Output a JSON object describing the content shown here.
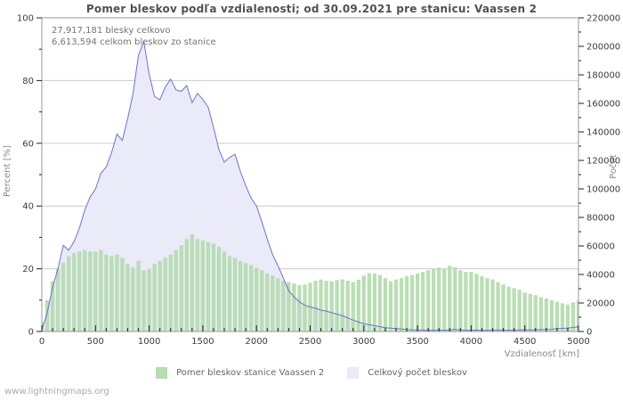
{
  "page": {
    "footer": "www.lightningmaps.org"
  },
  "chart_data": {
    "type": "area",
    "title": "Pomer bleskov podľa vzdialenosti; od 30.09.2021 pre stanicu: Vaassen 2",
    "annotations": [
      "27,917,181 blesky celkovo",
      "6,613,594 celkom bleskov zo stanice"
    ],
    "x_label": "Vzdialenosť  [km]",
    "y_left_label": "Percent  [%]",
    "y_right_label": "Počet",
    "xlim": [
      0,
      5000
    ],
    "ylim": [
      0,
      100
    ],
    "y2lim": [
      0,
      220000
    ],
    "x_ticks": [
      0,
      500,
      1000,
      1500,
      2000,
      2500,
      3000,
      3500,
      4000,
      4500,
      5000
    ],
    "x_minor_step": 100,
    "y_ticks": [
      0,
      20,
      40,
      60,
      80,
      100
    ],
    "y_minor_step": 10,
    "y2_ticks": [
      0,
      20000,
      40000,
      60000,
      80000,
      100000,
      120000,
      140000,
      160000,
      180000,
      200000,
      220000
    ],
    "y2_minor_step": 10000,
    "grid": "horizontal-major",
    "legend_position": "bottom-center",
    "legend": [
      {
        "label": "Pomer bleskov stanice Vaassen 2",
        "color": "#b6dcb0"
      },
      {
        "label": "Celkový počet bleskov",
        "color": "#eaeaf8"
      }
    ],
    "x_start": 0,
    "x_step": 50,
    "series": [
      {
        "name": "Pomer bleskov stanice Vaassen 2",
        "type": "bar",
        "axis": "left",
        "unit": "%",
        "color": "#b6dcb0",
        "values": [
          3,
          10,
          16,
          20,
          22,
          24,
          25,
          25.5,
          26,
          25.5,
          25.5,
          26,
          24.5,
          24,
          24.5,
          23.5,
          21.5,
          20.5,
          22.5,
          19.5,
          20,
          21.5,
          22.5,
          23.5,
          24.5,
          26,
          27.5,
          29.5,
          31,
          29.5,
          29,
          28.5,
          28,
          27,
          25.5,
          24,
          23.5,
          22.5,
          21.8,
          21.2,
          20.3,
          19.5,
          18.5,
          17.8,
          17,
          16.2,
          15.8,
          15.3,
          14.8,
          15,
          15.5,
          16.2,
          16.6,
          16.2,
          16,
          16.4,
          16.6,
          16.2,
          15.7,
          16.5,
          17.8,
          18.6,
          18.5,
          18,
          17,
          16,
          16.6,
          17,
          17.6,
          18,
          18.5,
          19,
          19.5,
          20,
          20.4,
          20,
          21,
          20.5,
          19.5,
          19,
          19,
          18.4,
          17.6,
          17,
          16.6,
          15.7,
          15,
          14.3,
          13.8,
          13.3,
          12.4,
          12,
          11.6,
          11,
          10.5,
          10,
          9.5,
          9,
          8.6,
          9.3,
          10
        ]
      },
      {
        "name": "Celkový počet bleskov",
        "type": "area-line",
        "axis": "right",
        "unit": "count",
        "fill": "#eaeaf8",
        "line_color": "#6b74c9",
        "values": [
          1000,
          13000,
          31000,
          44000,
          60500,
          57000,
          63000,
          72500,
          85000,
          94500,
          100000,
          111000,
          115500,
          125500,
          138500,
          134000,
          149500,
          167000,
          193500,
          203500,
          180500,
          165000,
          162500,
          171500,
          177000,
          169500,
          168500,
          172500,
          160500,
          167000,
          162800,
          157300,
          143000,
          127600,
          118800,
          122100,
          124300,
          112200,
          102300,
          93500,
          88000,
          77000,
          64900,
          53900,
          46200,
          37400,
          28600,
          24200,
          20900,
          18300,
          17200,
          16300,
          15000,
          14300,
          13200,
          12100,
          11000,
          9600,
          8000,
          6600,
          5400,
          4800,
          4000,
          3400,
          2600,
          2300,
          2000,
          1700,
          1400,
          1200,
          1100,
          1000,
          900,
          900,
          1000,
          900,
          1100,
          1500,
          1100,
          900,
          900,
          1000,
          900,
          900,
          1000,
          1100,
          1000,
          900,
          1000,
          1100,
          1200,
          1100,
          1200,
          1300,
          1400,
          1500,
          2000,
          2200,
          2400,
          2900,
          3300
        ]
      }
    ],
    "colors": {
      "grid": "#cccccc",
      "border": "#9a9a9a",
      "tick": "#222222",
      "bar": "#b6dcb0",
      "area_fill": "#eaeaf8",
      "line": "#6b74c9"
    }
  }
}
